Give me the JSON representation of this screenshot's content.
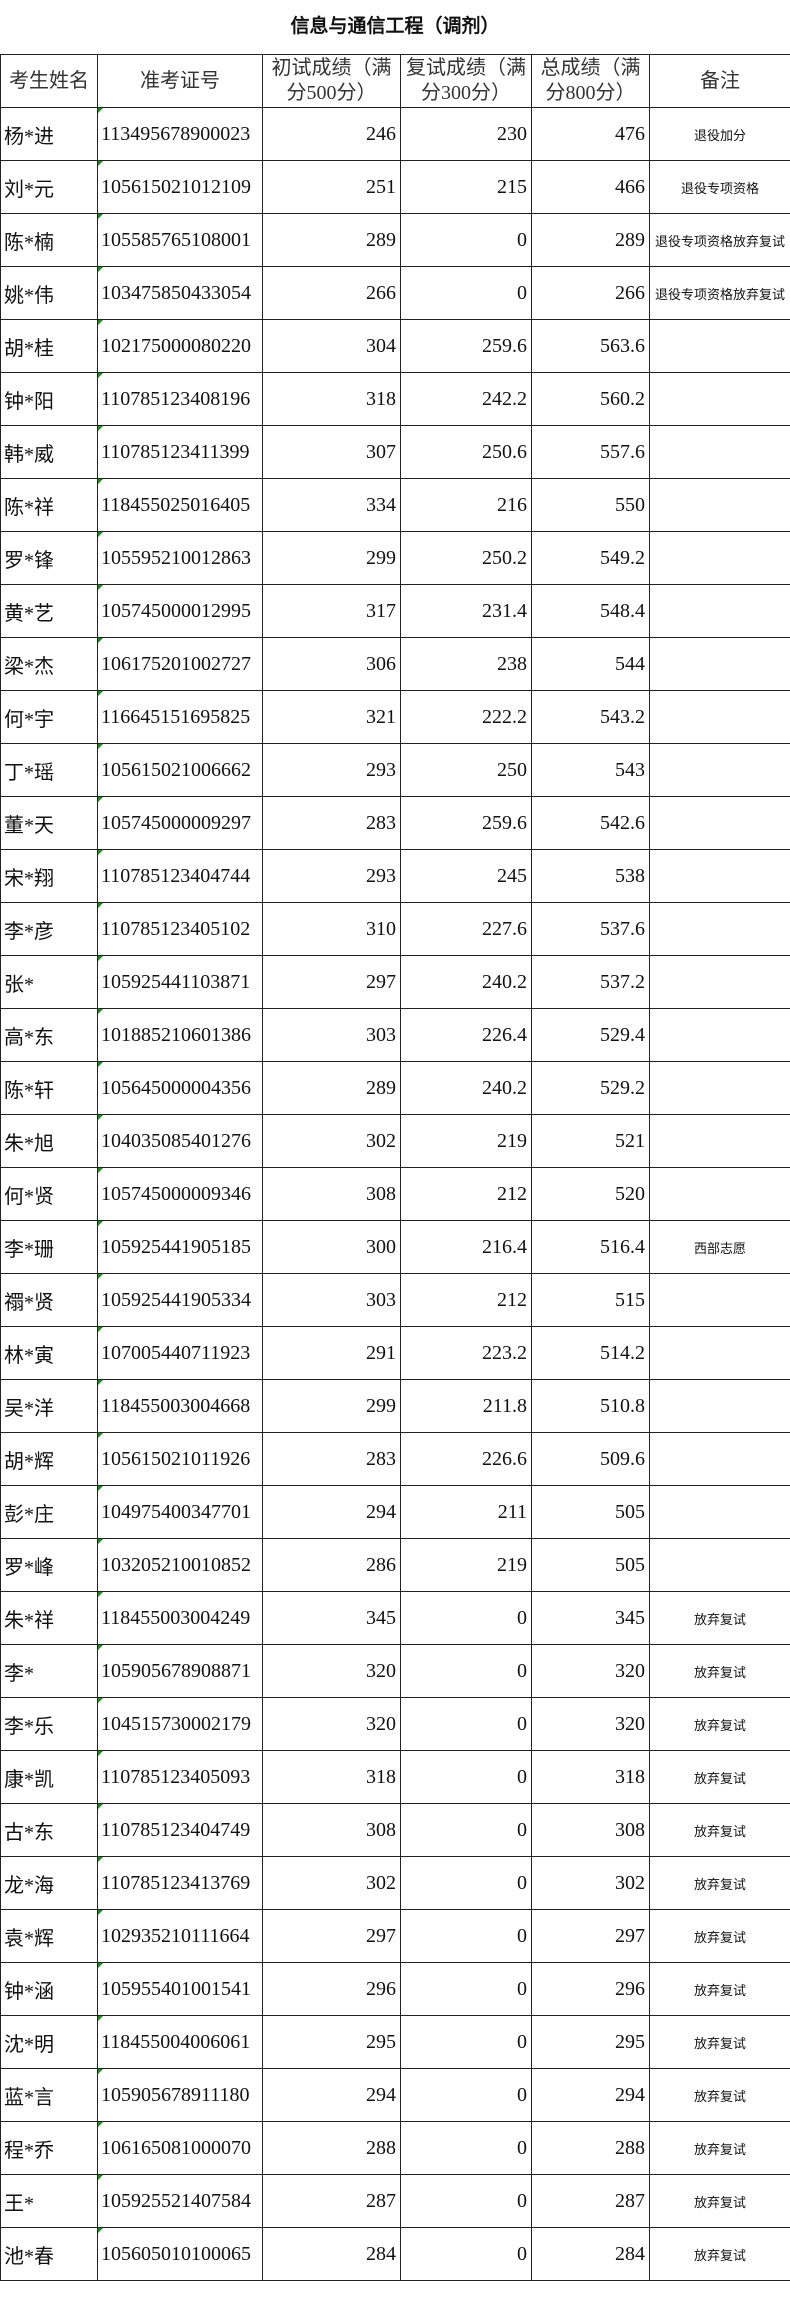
{
  "title": "信息与通信工程（调剂）",
  "headers": [
    "考生姓名",
    "准考证号",
    "初试成绩（满分500分）",
    "复试成绩（满分300分）",
    "总成绩（满分800分）",
    "备注"
  ],
  "rows": [
    [
      "杨*进",
      "113495678900023",
      "246",
      "230",
      "476",
      "退役加分"
    ],
    [
      "刘*元",
      "105615021012109",
      "251",
      "215",
      "466",
      "退役专项资格"
    ],
    [
      "陈*楠",
      "105585765108001",
      "289",
      "0",
      "289",
      "退役专项资格放弃复试"
    ],
    [
      "姚*伟",
      "103475850433054",
      "266",
      "0",
      "266",
      "退役专项资格放弃复试"
    ],
    [
      "胡*桂",
      "102175000080220",
      "304",
      "259.6",
      "563.6",
      ""
    ],
    [
      "钟*阳",
      "110785123408196",
      "318",
      "242.2",
      "560.2",
      ""
    ],
    [
      "韩*威",
      "110785123411399",
      "307",
      "250.6",
      "557.6",
      ""
    ],
    [
      "陈*祥",
      "118455025016405",
      "334",
      "216",
      "550",
      ""
    ],
    [
      "罗*锋",
      "105595210012863",
      "299",
      "250.2",
      "549.2",
      ""
    ],
    [
      "黄*艺",
      "105745000012995",
      "317",
      "231.4",
      "548.4",
      ""
    ],
    [
      "梁*杰",
      "106175201002727",
      "306",
      "238",
      "544",
      ""
    ],
    [
      "何*宇",
      "116645151695825",
      "321",
      "222.2",
      "543.2",
      ""
    ],
    [
      "丁*瑶",
      "105615021006662",
      "293",
      "250",
      "543",
      ""
    ],
    [
      "董*天",
      "105745000009297",
      "283",
      "259.6",
      "542.6",
      ""
    ],
    [
      "宋*翔",
      "110785123404744",
      "293",
      "245",
      "538",
      ""
    ],
    [
      "李*彦",
      "110785123405102",
      "310",
      "227.6",
      "537.6",
      ""
    ],
    [
      "张*",
      "105925441103871",
      "297",
      "240.2",
      "537.2",
      ""
    ],
    [
      "高*东",
      "101885210601386",
      "303",
      "226.4",
      "529.4",
      ""
    ],
    [
      "陈*轩",
      "105645000004356",
      "289",
      "240.2",
      "529.2",
      ""
    ],
    [
      "朱*旭",
      "104035085401276",
      "302",
      "219",
      "521",
      ""
    ],
    [
      "何*贤",
      "105745000009346",
      "308",
      "212",
      "520",
      ""
    ],
    [
      "李*珊",
      "105925441905185",
      "300",
      "216.4",
      "516.4",
      "西部志愿"
    ],
    [
      "禤*贤",
      "105925441905334",
      "303",
      "212",
      "515",
      ""
    ],
    [
      "林*寅",
      "107005440711923",
      "291",
      "223.2",
      "514.2",
      ""
    ],
    [
      "吴*洋",
      "118455003004668",
      "299",
      "211.8",
      "510.8",
      ""
    ],
    [
      "胡*辉",
      "105615021011926",
      "283",
      "226.6",
      "509.6",
      ""
    ],
    [
      "彭*庄",
      "104975400347701",
      "294",
      "211",
      "505",
      ""
    ],
    [
      "罗*峰",
      "103205210010852",
      "286",
      "219",
      "505",
      ""
    ],
    [
      "朱*祥",
      "118455003004249",
      "345",
      "0",
      "345",
      "放弃复试"
    ],
    [
      "李*",
      "105905678908871",
      "320",
      "0",
      "320",
      "放弃复试"
    ],
    [
      "李*乐",
      "104515730002179",
      "320",
      "0",
      "320",
      "放弃复试"
    ],
    [
      "康*凯",
      "110785123405093",
      "318",
      "0",
      "318",
      "放弃复试"
    ],
    [
      "古*东",
      "110785123404749",
      "308",
      "0",
      "308",
      "放弃复试"
    ],
    [
      "龙*海",
      "110785123413769",
      "302",
      "0",
      "302",
      "放弃复试"
    ],
    [
      "袁*辉",
      "102935210111664",
      "297",
      "0",
      "297",
      "放弃复试"
    ],
    [
      "钟*涵",
      "105955401001541",
      "296",
      "0",
      "296",
      "放弃复试"
    ],
    [
      "沈*明",
      "118455004006061",
      "295",
      "0",
      "295",
      "放弃复试"
    ],
    [
      "蓝*言",
      "105905678911180",
      "294",
      "0",
      "294",
      "放弃复试"
    ],
    [
      "程*乔",
      "106165081000070",
      "288",
      "0",
      "288",
      "放弃复试"
    ],
    [
      "王*",
      "105925521407584",
      "287",
      "0",
      "287",
      "放弃复试"
    ],
    [
      "池*春",
      "105605010100065",
      "284",
      "0",
      "284",
      "放弃复试"
    ]
  ]
}
